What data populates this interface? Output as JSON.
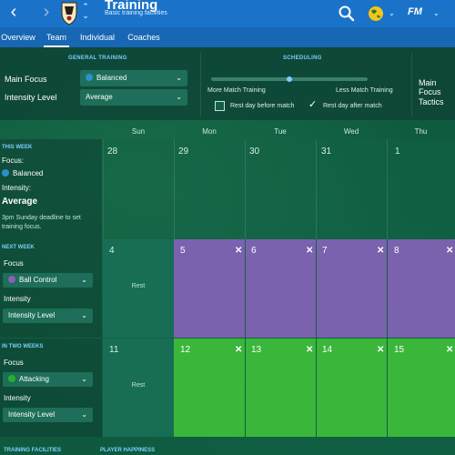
{
  "header": {
    "title": "Training",
    "subtitle": "Basic training facilities",
    "back_glyph": "‹",
    "forward_glyph": "›",
    "fm_logo": "FM",
    "up_glyph": "⌃",
    "down_glyph": "⌄",
    "accent": "#1a73c9"
  },
  "tabs": [
    {
      "label": "Overview"
    },
    {
      "label": "Team"
    },
    {
      "label": "Individual"
    },
    {
      "label": "Coaches"
    }
  ],
  "general_training": {
    "section_title": "GENERAL TRAINING",
    "main_focus_label": "Main Focus",
    "main_focus_value": "Balanced",
    "intensity_label": "Intensity Level",
    "intensity_value": "Average"
  },
  "scheduling": {
    "section_title": "SCHEDULING",
    "more_label": "More Match Training",
    "less_label": "Less Match Training",
    "rest_before_label": "Rest day before match",
    "rest_after_label": "Rest day after match",
    "rest_before_checked": false,
    "rest_after_checked": true,
    "slider_level": 0.5
  },
  "right_partial": {
    "main_focus_label": "Main Focus",
    "tactics_label": "Tactics"
  },
  "days": [
    "Sun",
    "Mon",
    "Tue",
    "Wed",
    "Thu"
  ],
  "this_week": {
    "title": "THIS WEEK",
    "focus_label": "Focus:",
    "focus_value": "Balanced",
    "intensity_label": "Intensity:",
    "intensity_value": "Average",
    "note": "3pm Sunday deadline to set training focus.",
    "dates": [
      "28",
      "29",
      "30",
      "31",
      "1"
    ]
  },
  "next_week": {
    "title": "NEXT WEEK",
    "focus_label": "Focus",
    "focus_value": "Ball Control",
    "intensity_label": "Intensity",
    "intensity_value": "Intensity Level",
    "rest_label": "Rest",
    "dates": [
      "4",
      "5",
      "6",
      "7",
      "8"
    ]
  },
  "two_weeks": {
    "title": "IN TWO WEEKS",
    "focus_label": "Focus",
    "focus_value": "Attacking",
    "intensity_label": "Intensity",
    "intensity_value": "Intensity Level",
    "rest_label": "Rest",
    "dates": [
      "11",
      "12",
      "13",
      "14",
      "15"
    ]
  },
  "footer": {
    "left_title": "TRAINING FACILITIES",
    "right_title": "PLAYER HAPPINESS"
  },
  "icons": {
    "close_glyph": "✕",
    "caret_glyph": "⌄",
    "check_glyph": "✓"
  },
  "colors": {
    "balanced": "#2b8fd0",
    "ball_control": "#8a5fb8",
    "attacking": "#22b22a",
    "purple_session": "#7a62ae",
    "green_session": "#3ab63a"
  }
}
